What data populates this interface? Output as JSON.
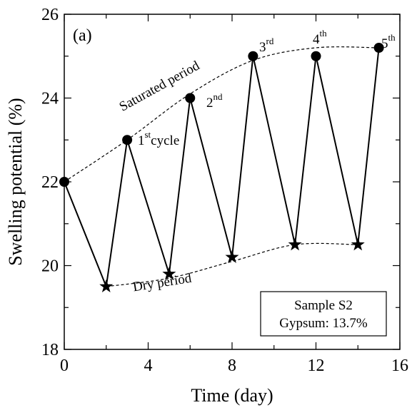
{
  "chart_data": {
    "type": "line",
    "panel_label": "(a)",
    "xlabel": "Time (day)",
    "ylabel": "Swelling potential (%)",
    "xlim": [
      0,
      16
    ],
    "ylim": [
      18,
      26
    ],
    "xticks": [
      0,
      4,
      8,
      12,
      16
    ],
    "yticks": [
      18,
      20,
      22,
      24,
      26
    ],
    "xtick_labels": [
      "0",
      "4",
      "8",
      "12",
      "16"
    ],
    "ytick_labels": [
      "18",
      "20",
      "22",
      "24",
      "26"
    ],
    "grid": false,
    "series": [
      {
        "marker": "circle",
        "x": [
          0,
          3,
          6,
          9,
          12,
          15
        ],
        "y": [
          22.0,
          23.0,
          24.0,
          25.0,
          25.0,
          25.2
        ]
      },
      {
        "marker": "star",
        "x": [
          2,
          5,
          8,
          11,
          14
        ],
        "y": [
          19.5,
          19.8,
          20.2,
          20.5,
          20.5
        ]
      }
    ],
    "cycle_path": {
      "x": [
        0,
        2,
        3,
        5,
        6,
        8,
        9,
        11,
        12,
        14,
        15
      ],
      "y": [
        22.0,
        19.5,
        23.0,
        19.8,
        24.0,
        20.2,
        25.0,
        20.5,
        25.0,
        20.5,
        25.2
      ]
    },
    "envelope_upper": {
      "x": [
        0,
        3,
        6,
        9,
        12,
        15
      ],
      "y": [
        22.0,
        23.0,
        24.1,
        24.9,
        25.2,
        25.2
      ]
    },
    "envelope_lower": {
      "x": [
        2,
        5,
        8,
        11,
        14
      ],
      "y": [
        19.5,
        19.7,
        20.1,
        20.5,
        20.5
      ]
    },
    "annotations": {
      "saturated": "Saturated period",
      "dry": "Dry period",
      "cycle1_base": "1",
      "cycle1_sup": "st",
      "cycle1_tail": "cycle",
      "cycle2_base": "2",
      "cycle2_sup": "nd",
      "cycle3_base": "3",
      "cycle3_sup": "rd",
      "cycle4_base": "4",
      "cycle4_sup": "th",
      "cycle5_base": "5",
      "cycle5_sup": "th"
    },
    "legend": {
      "position": "bottom-right",
      "line1": "Sample S2",
      "line2": "Gypsum: 13.7%"
    }
  }
}
